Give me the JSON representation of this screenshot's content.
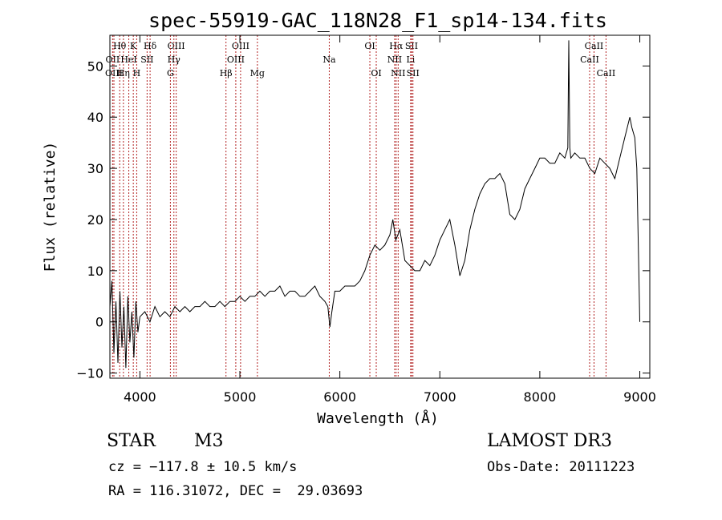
{
  "chart_data": {
    "type": "line",
    "title": "spec-55919-GAC_118N28_F1_sp14-134.fits",
    "xlabel": "Wavelength (Å)",
    "ylabel": "Flux (relative)",
    "xlim": [
      3700,
      9100
    ],
    "ylim": [
      -11,
      56
    ],
    "xticks": [
      4000,
      5000,
      6000,
      7000,
      8000,
      9000
    ],
    "xtick_labels": [
      "4000",
      "5000",
      "6000",
      "7000",
      "8000",
      "9000"
    ],
    "yticks": [
      -10,
      0,
      10,
      20,
      30,
      40,
      50
    ],
    "ytick_labels": [
      "−10",
      "0",
      "10",
      "20",
      "30",
      "40",
      "50"
    ],
    "series": [
      {
        "name": "flux",
        "x": [
          3700,
          3720,
          3740,
          3760,
          3780,
          3800,
          3820,
          3840,
          3860,
          3880,
          3900,
          3920,
          3940,
          3960,
          3980,
          4000,
          4050,
          4100,
          4150,
          4200,
          4250,
          4300,
          4350,
          4400,
          4450,
          4500,
          4550,
          4600,
          4650,
          4700,
          4750,
          4800,
          4850,
          4900,
          4950,
          5000,
          5050,
          5100,
          5150,
          5200,
          5250,
          5300,
          5350,
          5400,
          5450,
          5500,
          5550,
          5600,
          5650,
          5700,
          5750,
          5800,
          5850,
          5880,
          5900,
          5920,
          5950,
          6000,
          6050,
          6100,
          6150,
          6200,
          6250,
          6300,
          6350,
          6400,
          6450,
          6500,
          6530,
          6560,
          6600,
          6650,
          6700,
          6750,
          6800,
          6850,
          6900,
          6950,
          7000,
          7050,
          7100,
          7150,
          7200,
          7250,
          7300,
          7350,
          7400,
          7450,
          7500,
          7550,
          7600,
          7650,
          7700,
          7750,
          7800,
          7850,
          7900,
          7950,
          8000,
          8050,
          8100,
          8150,
          8200,
          8250,
          8280,
          8290,
          8300,
          8310,
          8350,
          8400,
          8450,
          8500,
          8550,
          8600,
          8650,
          8700,
          8750,
          8800,
          8850,
          8900,
          8920,
          8950,
          8970,
          8990,
          9000
        ],
        "values": [
          3,
          8,
          -6,
          4,
          -8,
          6,
          -5,
          3,
          -9,
          5,
          -4,
          2,
          -7,
          4,
          -2,
          1,
          2,
          0,
          3,
          1,
          2,
          1,
          3,
          2,
          3,
          2,
          3,
          3,
          4,
          3,
          3,
          4,
          3,
          4,
          4,
          5,
          4,
          5,
          5,
          6,
          5,
          6,
          6,
          7,
          5,
          6,
          6,
          5,
          5,
          6,
          7,
          5,
          4,
          3,
          -1,
          2,
          6,
          6,
          7,
          7,
          7,
          8,
          10,
          13,
          15,
          14,
          15,
          17,
          20,
          16,
          18,
          12,
          11,
          10,
          10,
          12,
          11,
          13,
          16,
          18,
          20,
          15,
          9,
          12,
          18,
          22,
          25,
          27,
          28,
          28,
          29,
          27,
          21,
          20,
          22,
          26,
          28,
          30,
          32,
          32,
          31,
          31,
          33,
          32,
          34,
          55,
          34,
          32,
          33,
          32,
          32,
          30,
          29,
          32,
          31,
          30,
          28,
          32,
          36,
          40,
          38,
          36,
          30,
          10,
          0
        ]
      }
    ],
    "lines": [
      {
        "label": "Hθ",
        "wavelength": 3798,
        "row": 1
      },
      {
        "label": "OII",
        "wavelength": 3727,
        "row": 2
      },
      {
        "label": "OIII",
        "wavelength": 3740,
        "row": 3
      },
      {
        "label": "K",
        "wavelength": 3934,
        "row": 1
      },
      {
        "label": "HeI",
        "wavelength": 3889,
        "row": 2
      },
      {
        "label": "Hη",
        "wavelength": 3835,
        "row": 3
      },
      {
        "label": "SII",
        "wavelength": 4072,
        "row": 2
      },
      {
        "label": "H",
        "wavelength": 3968,
        "row": 3
      },
      {
        "label": "Hδ",
        "wavelength": 4102,
        "row": 1
      },
      {
        "label": "OIII",
        "wavelength": 4363,
        "row": 1
      },
      {
        "label": "Hγ",
        "wavelength": 4340,
        "row": 2
      },
      {
        "label": "G",
        "wavelength": 4305,
        "row": 3
      },
      {
        "label": "Hβ",
        "wavelength": 4861,
        "row": 3
      },
      {
        "label": "OIII",
        "wavelength": 5007,
        "row": 1
      },
      {
        "label": "OIII",
        "wavelength": 4959,
        "row": 2
      },
      {
        "label": "Mg",
        "wavelength": 5175,
        "row": 3
      },
      {
        "label": "Na",
        "wavelength": 5894,
        "row": 2
      },
      {
        "label": "OI",
        "wavelength": 6300,
        "row": 1
      },
      {
        "label": "OI",
        "wavelength": 6364,
        "row": 3
      },
      {
        "label": "Hα",
        "wavelength": 6563,
        "row": 1
      },
      {
        "label": "NII",
        "wavelength": 6548,
        "row": 2
      },
      {
        "label": "NII",
        "wavelength": 6583,
        "row": 3
      },
      {
        "label": "SII",
        "wavelength": 6717,
        "row": 1
      },
      {
        "label": "Li",
        "wavelength": 6708,
        "row": 2
      },
      {
        "label": "SII",
        "wavelength": 6731,
        "row": 3
      },
      {
        "label": "CaII",
        "wavelength": 8542,
        "row": 1
      },
      {
        "label": "CaII",
        "wavelength": 8498,
        "row": 2
      },
      {
        "label": "CaII",
        "wavelength": 8662,
        "row": 3
      }
    ]
  },
  "info": {
    "class": "STAR",
    "subclass": "M3",
    "survey": "LAMOST DR3",
    "cz": "cz = −117.8 ± 10.5 km/s",
    "obs_date": "Obs-Date: 20111223",
    "radec": "RA = 116.31072, DEC =  29.03693"
  },
  "colors": {
    "axes": "#000000",
    "flux": "#000000",
    "line_markers": "#b22222"
  }
}
